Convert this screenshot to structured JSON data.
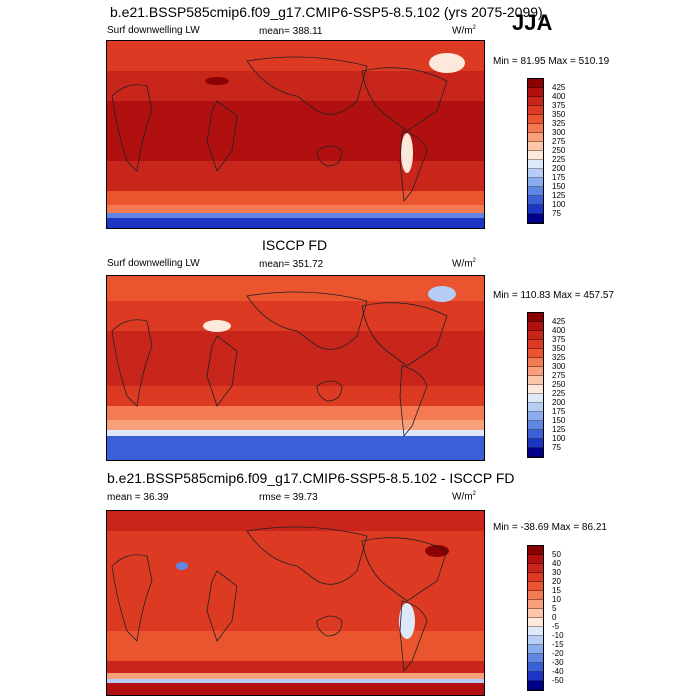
{
  "header": {
    "title": "b.e21.BSSP585cmip6.f09_g17.CMIP6-SSP5-8.5.102 (yrs 2075-2099)",
    "season": "JJA"
  },
  "panel1": {
    "left_label": "Surf downwelling LW",
    "mean_text": "mean= 388.11",
    "units_base": "W/m",
    "units_exp": "2",
    "minmax": "Min =  81.95 Max = 510.19",
    "ticks": [
      "425",
      "400",
      "375",
      "350",
      "325",
      "300",
      "275",
      "250",
      "225",
      "200",
      "175",
      "150",
      "125",
      "100",
      "75"
    ]
  },
  "panel2": {
    "title": "ISCCP FD",
    "left_label": "Surf downwelling LW",
    "mean_text": "mean= 351.72",
    "units_base": "W/m",
    "units_exp": "2",
    "minmax": "Min = 110.83 Max = 457.57",
    "ticks": [
      "425",
      "400",
      "375",
      "350",
      "325",
      "300",
      "275",
      "250",
      "225",
      "200",
      "175",
      "150",
      "125",
      "100",
      "75"
    ]
  },
  "panel3": {
    "title": "b.e21.BSSP585cmip6.f09_g17.CMIP6-SSP5-8.5.102 - ISCCP FD",
    "mean_text": "mean =  36.39",
    "rmse_text": "rmse =  39.73",
    "units_base": "W/m",
    "units_exp": "2",
    "minmax": "Min = -38.69  Max =  86.21",
    "ticks": [
      "50",
      "40",
      "30",
      "20",
      "15",
      "10",
      "5",
      "0",
      "-5",
      "-10",
      "-15",
      "-20",
      "-30",
      "-40",
      "-50"
    ]
  },
  "colors": {
    "abs_scale": [
      "#8b0000",
      "#b01010",
      "#c8261b",
      "#dc3a22",
      "#ea5530",
      "#f47a52",
      "#f8a07c",
      "#fcc7a9",
      "#fde8dc",
      "#dde9fb",
      "#b6cdf6",
      "#8aacee",
      "#5f86e3",
      "#3a5fd6",
      "#1c35c2",
      "#00008b"
    ],
    "diff_scale": [
      "#8b0000",
      "#b01010",
      "#c8261b",
      "#dc3a22",
      "#ea5530",
      "#f47a52",
      "#f8a07c",
      "#fcc7a9",
      "#fde8dc",
      "#dde9fb",
      "#b6cdf6",
      "#8aacee",
      "#5f86e3",
      "#3a5fd6",
      "#1c35c2",
      "#00008b"
    ]
  }
}
